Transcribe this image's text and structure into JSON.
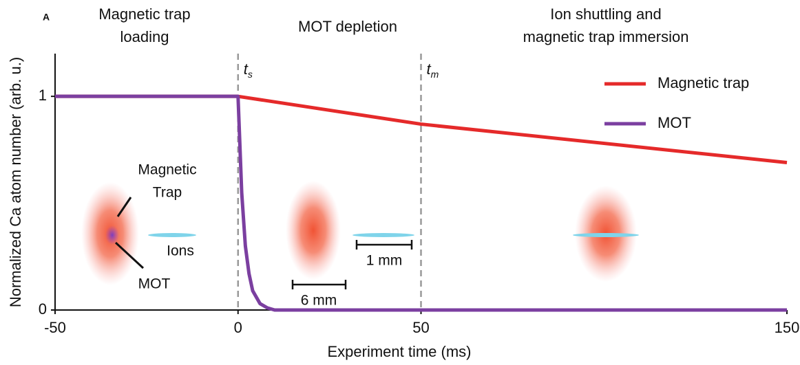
{
  "chart_data": {
    "type": "line",
    "panel": "A",
    "sections": [
      [
        "Magnetic trap",
        "loading"
      ],
      [
        "MOT depletion"
      ],
      [
        "Ion shuttling and",
        "magnetic trap immersion"
      ]
    ],
    "xlabel": "Experiment time (ms)",
    "ylabel": "Normalized Ca atom number (arb. u.)",
    "xlim": [
      -50,
      150
    ],
    "xticks": [
      -50,
      0,
      50,
      150
    ],
    "ylim": [
      0,
      1.2
    ],
    "yticks": [
      0,
      1
    ],
    "legend": "top-right",
    "vlines": [
      {
        "x": 0,
        "label": "t",
        "sub": "s"
      },
      {
        "x": 50,
        "label": "t",
        "sub": "m"
      }
    ],
    "series": [
      {
        "name": "Magnetic trap",
        "color": "#e52a2a",
        "x": [
          -50,
          0,
          50,
          150
        ],
        "values": [
          1.0,
          1.0,
          0.87,
          0.69
        ]
      },
      {
        "name": "MOT",
        "color": "#7b3fa0",
        "x": [
          -50,
          0,
          1,
          2,
          3,
          4,
          6,
          8,
          10,
          150
        ],
        "values": [
          1.0,
          1.0,
          0.55,
          0.3,
          0.17,
          0.09,
          0.03,
          0.01,
          0,
          0
        ]
      }
    ],
    "annotations": {
      "magnetic_trap": [
        "Magnetic",
        "Trap"
      ],
      "ions": "Ions",
      "mot": "MOT",
      "scale_small": "1 mm",
      "scale_large": "6 mm"
    }
  }
}
